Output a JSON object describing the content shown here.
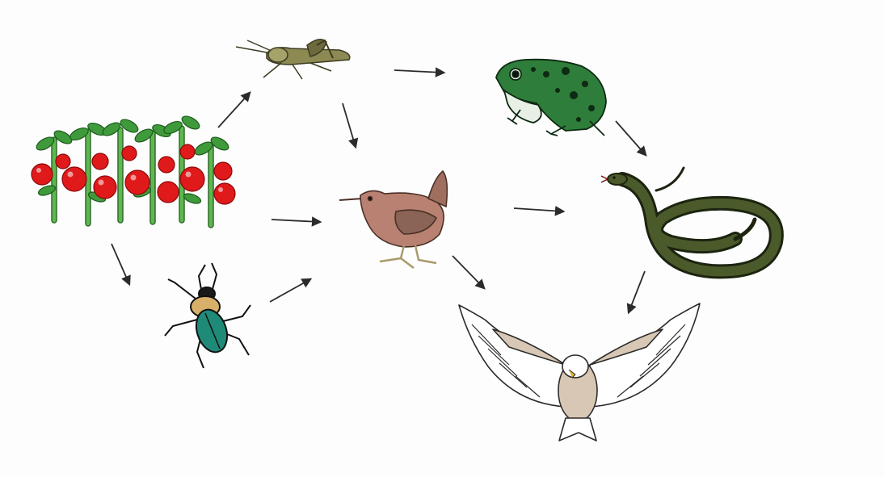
{
  "diagram": {
    "type": "food-web",
    "organisms": [
      {
        "id": "tomato-plants",
        "icon": "tomato-plants-icon",
        "colors": {
          "fruit": "#e0191b",
          "leaf": "#3f9a3b",
          "stem": "#5fb84f"
        }
      },
      {
        "id": "grasshopper",
        "icon": "grasshopper-icon",
        "colors": {
          "body": "#8c8a52",
          "dark": "#3d3b22"
        }
      },
      {
        "id": "beetle",
        "icon": "beetle-icon",
        "colors": {
          "shell": "#1f8a78",
          "head": "#d8b06a",
          "dark": "#111111"
        }
      },
      {
        "id": "frog",
        "icon": "frog-icon",
        "colors": {
          "body": "#2f7d3a",
          "belly": "#e8f0e6",
          "dark": "#0d2a12"
        }
      },
      {
        "id": "bird",
        "icon": "wren-icon",
        "colors": {
          "body": "#b98172",
          "wing": "#8a6456",
          "legs": "#a99a6a"
        }
      },
      {
        "id": "snake",
        "icon": "snake-icon",
        "colors": {
          "body": "#4a5a2a",
          "outline": "#1c2410"
        }
      },
      {
        "id": "eagle",
        "icon": "eagle-icon",
        "colors": {
          "body": "#d8c7b4",
          "outline": "#2a2a2a",
          "wing": "#ffffff"
        }
      }
    ],
    "arrows": [
      {
        "from": "tomato-plants",
        "to": "grasshopper"
      },
      {
        "from": "tomato-plants",
        "to": "bird"
      },
      {
        "from": "tomato-plants",
        "to": "beetle"
      },
      {
        "from": "grasshopper",
        "to": "frog"
      },
      {
        "from": "grasshopper",
        "to": "bird"
      },
      {
        "from": "beetle",
        "to": "bird"
      },
      {
        "from": "frog",
        "to": "snake"
      },
      {
        "from": "bird",
        "to": "snake"
      },
      {
        "from": "bird",
        "to": "eagle"
      },
      {
        "from": "snake",
        "to": "eagle"
      }
    ],
    "arrow_color": "#2b2b2b"
  }
}
